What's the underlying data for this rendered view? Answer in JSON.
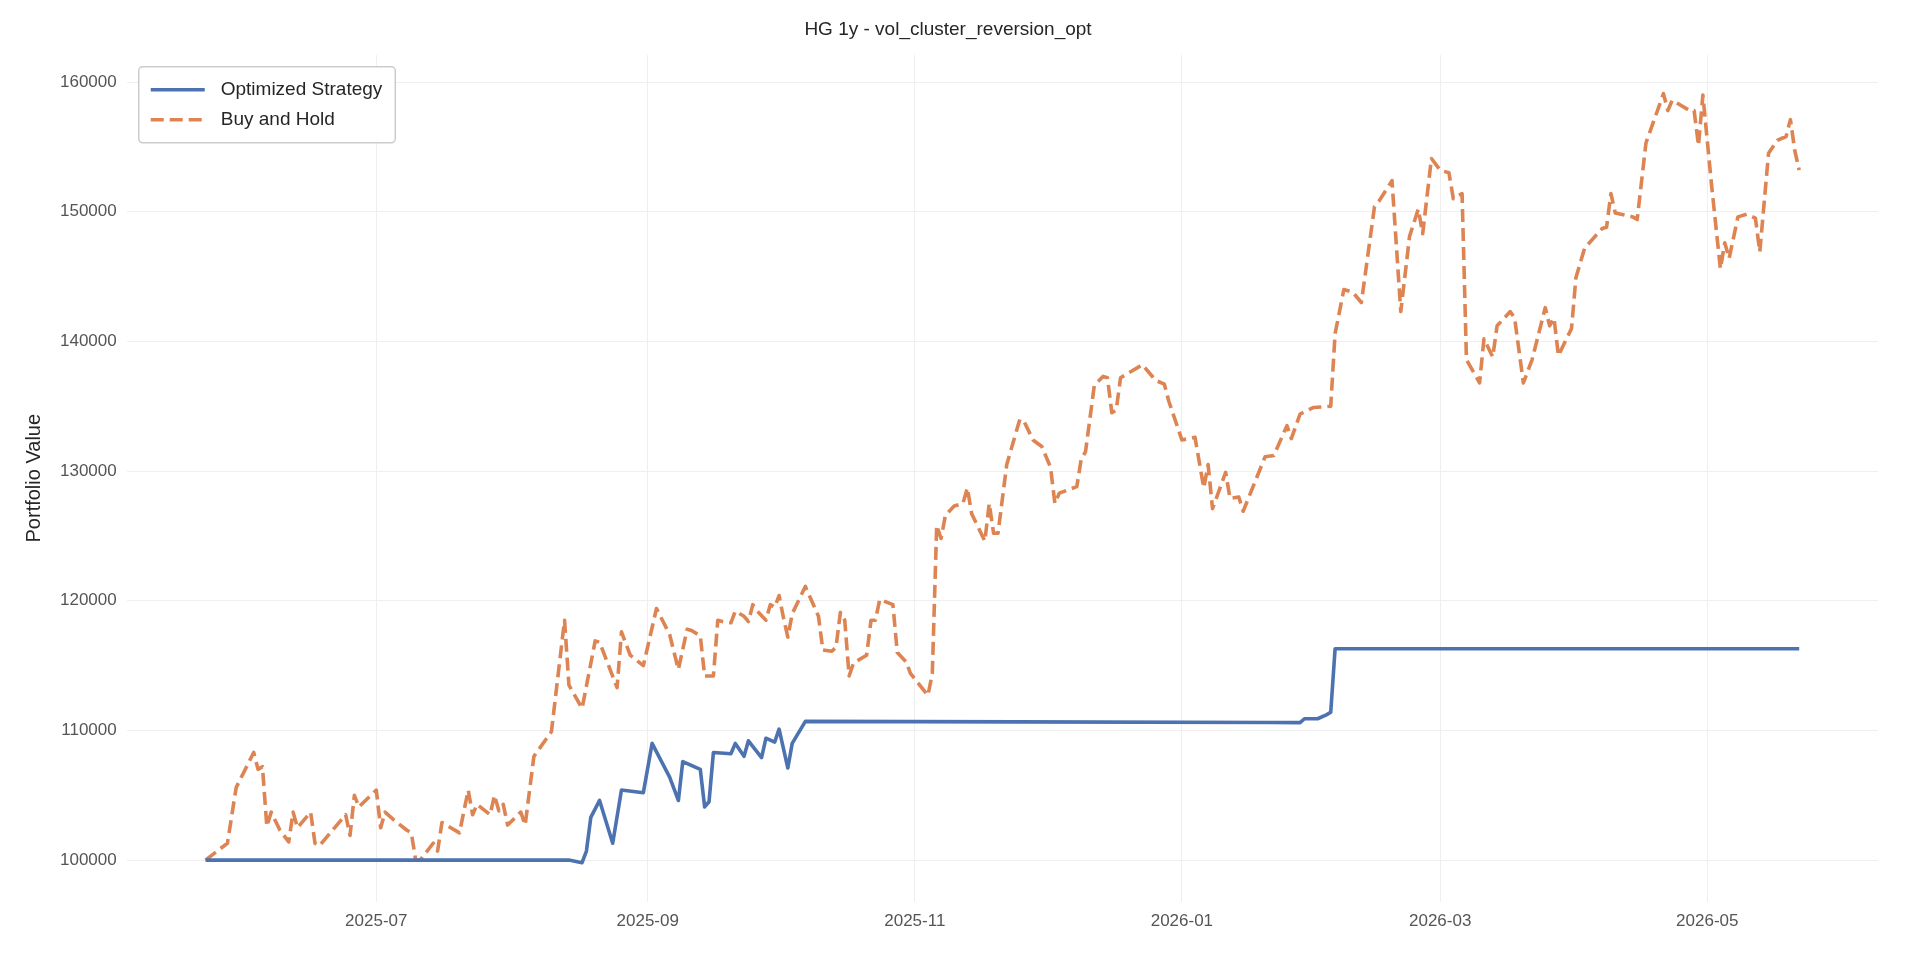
{
  "chart_data": {
    "type": "line",
    "title": "HG 1y - vol_cluster_reversion_opt",
    "ylabel": "Portfolio Value",
    "xlim": [
      "2025-05-05",
      "2026-06-09"
    ],
    "xticks": [
      "2025-07",
      "2025-09",
      "2025-11",
      "2026-01",
      "2026-03",
      "2026-05"
    ],
    "ylim": [
      96800,
      162100
    ],
    "yticks": [
      100000,
      110000,
      120000,
      130000,
      140000,
      150000,
      160000
    ],
    "grid": true,
    "legend": "top left",
    "series": [
      {
        "name": "Optimized Strategy",
        "color": "#4c72b0",
        "line_style": "solid",
        "x": [
          "2025-05-23",
          "2025-08-14",
          "2025-08-17",
          "2025-08-18",
          "2025-08-19",
          "2025-08-21",
          "2025-08-24",
          "2025-08-26",
          "2025-08-31",
          "2025-09-02",
          "2025-09-06",
          "2025-09-08",
          "2025-09-09",
          "2025-09-13",
          "2025-09-14",
          "2025-09-15",
          "2025-09-16",
          "2025-09-20",
          "2025-09-21",
          "2025-09-23",
          "2025-09-24",
          "2025-09-27",
          "2025-09-28",
          "2025-09-30",
          "2025-10-01",
          "2025-10-03",
          "2025-10-04",
          "2025-10-07",
          "2026-01-28",
          "2026-01-29",
          "2026-02-01",
          "2026-02-03",
          "2026-02-04",
          "2026-02-05",
          "2026-05-22"
        ],
        "values": [
          100000,
          100000,
          99800,
          100700,
          103300,
          104600,
          101300,
          105400,
          105200,
          109000,
          106400,
          104600,
          107600,
          107000,
          104100,
          104500,
          108300,
          108200,
          109000,
          108000,
          109200,
          107900,
          109400,
          109100,
          110100,
          107100,
          109000,
          110700,
          110600,
          110900,
          110900,
          111200,
          111400,
          116300,
          116300
        ]
      },
      {
        "name": "Buy and Hold",
        "color": "#dd8452",
        "line_style": "dashed",
        "x": [
          "2025-05-23",
          "2025-05-28",
          "2025-05-30",
          "2025-06-03",
          "2025-06-04",
          "2025-06-05",
          "2025-06-06",
          "2025-06-07",
          "2025-06-09",
          "2025-06-11",
          "2025-06-12",
          "2025-06-13",
          "2025-06-16",
          "2025-06-17",
          "2025-06-18",
          "2025-06-24",
          "2025-06-25",
          "2025-06-26",
          "2025-06-27",
          "2025-07-01",
          "2025-07-02",
          "2025-07-03",
          "2025-07-05",
          "2025-07-08",
          "2025-07-09",
          "2025-07-10",
          "2025-07-11",
          "2025-07-14",
          "2025-07-15",
          "2025-07-16",
          "2025-07-20",
          "2025-07-22",
          "2025-07-23",
          "2025-07-24",
          "2025-07-27",
          "2025-07-28",
          "2025-07-29",
          "2025-07-30",
          "2025-07-31",
          "2025-08-03",
          "2025-08-04",
          "2025-08-06",
          "2025-08-10",
          "2025-08-13",
          "2025-08-14",
          "2025-08-17",
          "2025-08-20",
          "2025-08-21",
          "2025-08-25",
          "2025-08-26",
          "2025-08-28",
          "2025-08-31",
          "2025-09-03",
          "2025-09-06",
          "2025-09-08",
          "2025-09-10",
          "2025-09-11",
          "2025-09-13",
          "2025-09-14",
          "2025-09-16",
          "2025-09-17",
          "2025-09-18",
          "2025-09-20",
          "2025-09-21",
          "2025-09-23",
          "2025-09-24",
          "2025-09-25",
          "2025-09-26",
          "2025-09-28",
          "2025-09-29",
          "2025-09-30",
          "2025-10-01",
          "2025-10-02",
          "2025-10-03",
          "2025-10-04",
          "2025-10-07",
          "2025-10-10",
          "2025-10-11",
          "2025-10-13",
          "2025-10-14",
          "2025-10-15",
          "2025-10-16",
          "2025-10-17",
          "2025-10-18",
          "2025-10-21",
          "2025-10-22",
          "2025-10-23",
          "2025-10-24",
          "2025-10-27",
          "2025-10-28",
          "2025-10-30",
          "2025-10-31",
          "2025-11-04",
          "2025-11-05",
          "2025-11-06",
          "2025-11-07",
          "2025-11-08",
          "2025-11-10",
          "2025-11-12",
          "2025-11-13",
          "2025-11-14",
          "2025-11-17",
          "2025-11-18",
          "2025-11-19",
          "2025-11-20",
          "2025-11-22",
          "2025-11-25",
          "2025-11-26",
          "2025-11-28",
          "2025-11-30",
          "2025-12-02",
          "2025-12-03",
          "2025-12-04",
          "2025-12-08",
          "2025-12-09",
          "2025-12-10",
          "2025-12-12",
          "2025-12-14",
          "2025-12-15",
          "2025-12-16",
          "2025-12-17",
          "2025-12-18",
          "2025-12-20",
          "2025-12-23",
          "2025-12-26",
          "2025-12-28",
          "2025-12-29",
          "2026-01-01",
          "2026-01-04",
          "2026-01-06",
          "2026-01-07",
          "2026-01-08",
          "2026-01-11",
          "2026-01-12",
          "2026-01-14",
          "2026-01-15",
          "2026-01-20",
          "2026-01-22",
          "2026-01-25",
          "2026-01-26",
          "2026-01-28",
          "2026-01-31",
          "2026-02-04",
          "2026-02-05",
          "2026-02-07",
          "2026-02-09",
          "2026-02-11",
          "2026-02-14",
          "2026-02-15",
          "2026-02-18",
          "2026-02-20",
          "2026-02-22",
          "2026-02-24",
          "2026-02-25",
          "2026-02-27",
          "2026-03-01",
          "2026-03-03",
          "2026-03-04",
          "2026-03-06",
          "2026-03-07",
          "2026-03-10",
          "2026-03-11",
          "2026-03-13",
          "2026-03-14",
          "2026-03-17",
          "2026-03-18",
          "2026-03-20",
          "2026-03-22",
          "2026-03-25",
          "2026-03-26",
          "2026-03-27",
          "2026-03-28",
          "2026-03-31",
          "2026-04-01",
          "2026-04-03",
          "2026-04-07",
          "2026-04-08",
          "2026-04-09",
          "2026-04-10",
          "2026-04-14",
          "2026-04-15",
          "2026-04-17",
          "2026-04-21",
          "2026-04-22",
          "2026-04-23",
          "2026-04-27",
          "2026-04-28",
          "2026-04-29",
          "2026-04-30",
          "2026-05-02",
          "2026-05-04",
          "2026-05-05",
          "2026-05-06",
          "2026-05-08",
          "2026-05-10",
          "2026-05-12",
          "2026-05-13",
          "2026-05-15",
          "2026-05-17",
          "2026-05-19",
          "2026-05-20",
          "2026-05-21",
          "2026-05-22"
        ],
        "values": [
          100000,
          101300,
          105600,
          108300,
          107000,
          107200,
          102600,
          103700,
          102300,
          101400,
          103700,
          102500,
          103700,
          101300,
          101100,
          103500,
          101900,
          105000,
          104100,
          105400,
          102500,
          103700,
          103100,
          102300,
          102100,
          100000,
          100000,
          101300,
          100700,
          102900,
          102100,
          105400,
          103500,
          104300,
          103500,
          105000,
          103800,
          104300,
          102700,
          103700,
          102700,
          108000,
          109900,
          118500,
          113500,
          111700,
          116900,
          116800,
          113300,
          117600,
          115800,
          115000,
          119400,
          117400,
          114700,
          117800,
          117700,
          117300,
          114200,
          114200,
          118500,
          118400,
          118300,
          119200,
          118800,
          118400,
          119700,
          119200,
          118500,
          119700,
          119500,
          120400,
          118700,
          117200,
          119000,
          121100,
          118800,
          116200,
          116100,
          116400,
          119100,
          118500,
          114200,
          115200,
          115800,
          118500,
          118500,
          120100,
          119700,
          116000,
          115300,
          114400,
          112700,
          114400,
          125800,
          124800,
          126600,
          127300,
          127500,
          128700,
          126700,
          124600,
          127500,
          125200,
          125200,
          130500,
          134000,
          133800,
          132400,
          131900,
          130300,
          127500,
          128300,
          128800,
          130900,
          131500,
          136600,
          137300,
          137200,
          134500,
          134700,
          137200,
          137600,
          138200,
          137000,
          136700,
          135400,
          132400,
          132600,
          128700,
          130500,
          127100,
          129900,
          127900,
          128000,
          126900,
          131100,
          131200,
          133500,
          132500,
          134400,
          134900,
          135000,
          140600,
          144000,
          143800,
          143000,
          150400,
          150800,
          152400,
          142300,
          148100,
          150200,
          148300,
          154100,
          153200,
          153000,
          151000,
          151400,
          138600,
          136800,
          140200,
          138800,
          141200,
          142300,
          141800,
          136800,
          138600,
          142600,
          141200,
          141800,
          138900,
          141000,
          144900,
          147200,
          148700,
          148800,
          151400,
          149900,
          149600,
          149400,
          155300,
          159100,
          157800,
          158600,
          157800,
          157800,
          155100,
          159000,
          152000,
          145600,
          147600,
          146400,
          149600,
          149800,
          149500,
          146900,
          154500,
          155500,
          155800,
          157100,
          154700,
          153200
        ]
      }
    ]
  }
}
